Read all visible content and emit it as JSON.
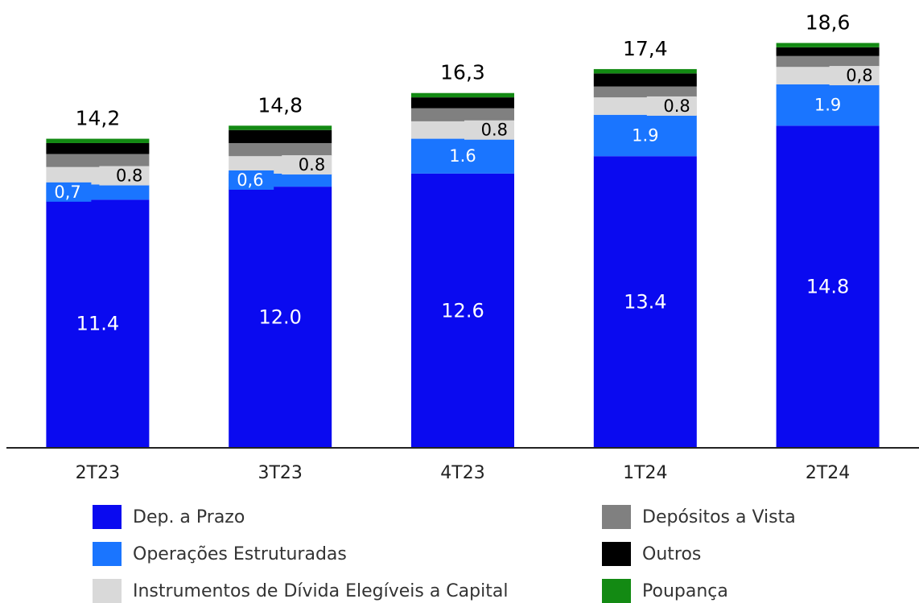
{
  "chart_data": {
    "type": "stacked_bar",
    "categories": [
      "2T23",
      "3T23",
      "4T23",
      "1T24",
      "2T24"
    ],
    "series": [
      {
        "name": "Dep. a Prazo",
        "color": "#0a0af0",
        "values": [
          11.4,
          12.0,
          12.6,
          13.4,
          14.8
        ],
        "value_labels": [
          "11.4",
          "12.0",
          "12.6",
          "13.4",
          "14.8"
        ]
      },
      {
        "name": "Operações Estruturadas",
        "color": "#1a75ff",
        "values": [
          0.7,
          0.6,
          1.6,
          1.9,
          1.9
        ],
        "value_labels": [
          "0,7",
          "0,6",
          "1.6",
          "1.9",
          "1.9"
        ]
      },
      {
        "name": "Instrumentos de Dívida Elegíveis a Capital",
        "color": "#d9d9d9",
        "values": [
          0.8,
          0.8,
          0.8,
          0.8,
          0.8
        ],
        "value_labels": [
          "0.8",
          "0.8",
          "0.8",
          "0.8",
          "0,8"
        ]
      },
      {
        "name": "Depósitos a Vista",
        "color": "#808080",
        "values": [
          0.6,
          0.6,
          0.6,
          0.5,
          0.5
        ]
      },
      {
        "name": "Outros",
        "color": "#000000",
        "values": [
          0.5,
          0.6,
          0.5,
          0.6,
          0.4
        ]
      },
      {
        "name": "Poupança",
        "color": "#138a13",
        "values": [
          0.2,
          0.2,
          0.2,
          0.2,
          0.2
        ]
      }
    ],
    "totals": [
      14.2,
      14.8,
      16.3,
      17.4,
      18.6
    ],
    "total_labels": [
      "14,2",
      "14,8",
      "16,3",
      "17,4",
      "18,6"
    ],
    "ylim": [
      0,
      20.5
    ]
  }
}
